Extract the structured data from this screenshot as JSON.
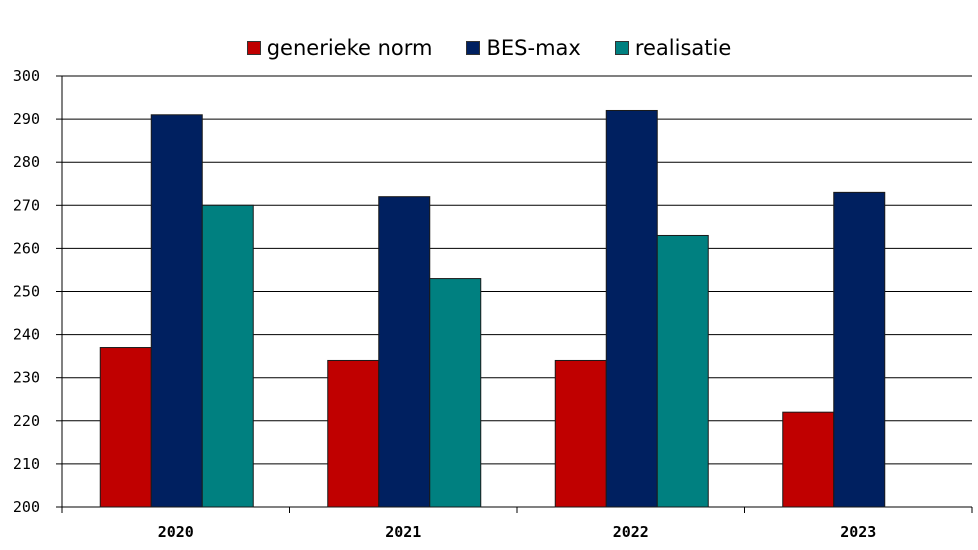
{
  "chart_data": {
    "type": "bar",
    "categories": [
      "2020",
      "2021",
      "2022",
      "2023"
    ],
    "series": [
      {
        "name": "generieke norm",
        "color": "#c00000",
        "values": [
          237,
          234,
          234,
          222
        ]
      },
      {
        "name": "BES-max",
        "color": "#002060",
        "values": [
          291,
          272,
          292,
          273
        ]
      },
      {
        "name": "realisatie",
        "color": "#008080",
        "values": [
          270,
          253,
          263,
          null
        ]
      }
    ],
    "ylim": [
      200,
      300
    ],
    "yticks": [
      200,
      210,
      220,
      230,
      240,
      250,
      260,
      270,
      280,
      290,
      300
    ],
    "grid": true,
    "legend_position": "top"
  }
}
